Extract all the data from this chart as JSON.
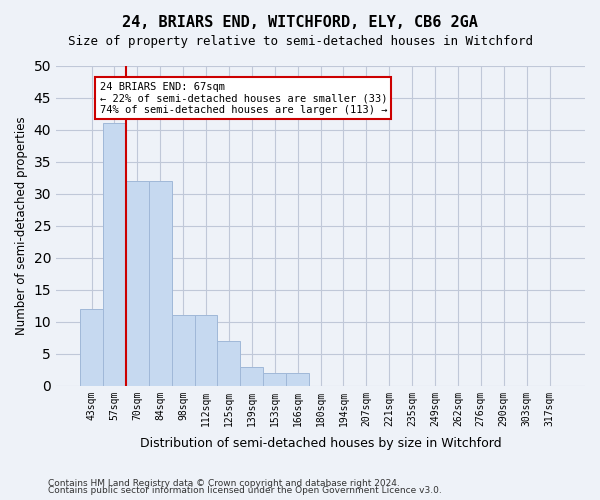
{
  "title": "24, BRIARS END, WITCHFORD, ELY, CB6 2GA",
  "subtitle": "Size of property relative to semi-detached houses in Witchford",
  "xlabel": "Distribution of semi-detached houses by size in Witchford",
  "ylabel": "Number of semi-detached properties",
  "bin_labels": [
    "43sqm",
    "57sqm",
    "70sqm",
    "84sqm",
    "98sqm",
    "112sqm",
    "125sqm",
    "139sqm",
    "153sqm",
    "166sqm",
    "180sqm",
    "194sqm",
    "207sqm",
    "221sqm",
    "235sqm",
    "249sqm",
    "262sqm",
    "276sqm",
    "290sqm",
    "303sqm",
    "317sqm"
  ],
  "bar_values": [
    12,
    41,
    32,
    32,
    11,
    11,
    7,
    3,
    2,
    2,
    0,
    0,
    0,
    0,
    0,
    0,
    0,
    0,
    0,
    0,
    0
  ],
  "bar_color": "#c6d9f0",
  "bar_edge_color": "#a0b8d8",
  "grid_color": "#c0c8d8",
  "property_line_x": 1.5,
  "annotation_line1": "24 BRIARS END: 67sqm",
  "annotation_line2": "← 22% of semi-detached houses are smaller (33)",
  "annotation_line3": "74% of semi-detached houses are larger (113) →",
  "annotation_box_color": "#ffffff",
  "annotation_box_edge": "#cc0000",
  "property_line_color": "#cc0000",
  "ylim": [
    0,
    50
  ],
  "yticks": [
    0,
    5,
    10,
    15,
    20,
    25,
    30,
    35,
    40,
    45,
    50
  ],
  "footnote1": "Contains HM Land Registry data © Crown copyright and database right 2024.",
  "footnote2": "Contains public sector information licensed under the Open Government Licence v3.0.",
  "bg_color": "#eef2f8"
}
